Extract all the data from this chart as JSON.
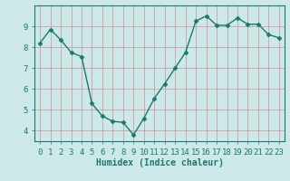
{
  "x": [
    0,
    1,
    2,
    3,
    4,
    5,
    6,
    7,
    8,
    9,
    10,
    11,
    12,
    13,
    14,
    15,
    16,
    17,
    18,
    19,
    20,
    21,
    22,
    23
  ],
  "y": [
    8.2,
    8.85,
    8.35,
    7.75,
    7.55,
    5.3,
    4.7,
    4.45,
    4.4,
    3.8,
    4.6,
    5.55,
    6.25,
    7.0,
    7.75,
    9.25,
    9.5,
    9.05,
    9.05,
    9.4,
    9.1,
    9.1,
    8.6,
    8.45
  ],
  "line_color": "#1a7a6e",
  "marker": "D",
  "markersize": 2.5,
  "linewidth": 1.0,
  "xlabel": "Humidex (Indice chaleur)",
  "ylim": [
    3.5,
    10.0
  ],
  "xlim": [
    -0.5,
    23.5
  ],
  "yticks": [
    4,
    5,
    6,
    7,
    8,
    9
  ],
  "xticks": [
    0,
    1,
    2,
    3,
    4,
    5,
    6,
    7,
    8,
    9,
    10,
    11,
    12,
    13,
    14,
    15,
    16,
    17,
    18,
    19,
    20,
    21,
    22,
    23
  ],
  "bg_color": "#cce8e8",
  "grid_color": "#d09090",
  "tick_color": "#1a7a6e",
  "label_color": "#1a7a6e",
  "xlabel_fontsize": 7,
  "tick_fontsize": 6.5
}
